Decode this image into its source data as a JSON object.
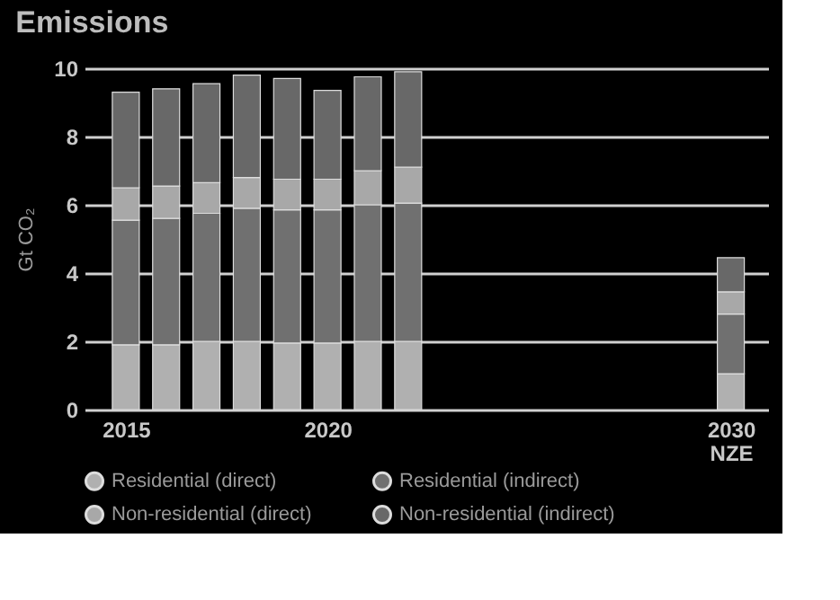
{
  "chart_data": {
    "type": "bar",
    "stacked": true,
    "title": "Emissions",
    "ylabel": "Gt CO₂",
    "x": [
      2015,
      2016,
      2017,
      2018,
      2019,
      2020,
      2021,
      2022,
      2030
    ],
    "xlim": [
      2014.2,
      2030.7
    ],
    "xticks": [
      2015,
      2020,
      {
        "value": 2030,
        "label": "2030 NZE"
      }
    ],
    "ylim": [
      0,
      10
    ],
    "yticks": [
      0,
      2,
      4,
      6,
      8,
      10
    ],
    "grid": "y",
    "legend": "bottom",
    "series": [
      {
        "name": "Residential (direct)",
        "color": "#b0b0b0",
        "values": [
          1.9,
          1.9,
          2.0,
          2.0,
          1.95,
          1.95,
          2.0,
          2.0,
          1.05
        ]
      },
      {
        "name": "Residential (indirect)",
        "color": "#707070",
        "values": [
          3.65,
          3.7,
          3.75,
          3.9,
          3.9,
          3.9,
          4.0,
          4.05,
          1.75
        ]
      },
      {
        "name": "Non-residential (direct)",
        "color": "#a8a8a8",
        "values": [
          0.95,
          0.95,
          0.9,
          0.9,
          0.9,
          0.9,
          1.0,
          1.05,
          0.65
        ]
      },
      {
        "name": "Non-residential (indirect)",
        "color": "#686868",
        "values": [
          2.8,
          2.85,
          2.9,
          3.0,
          2.95,
          2.6,
          2.75,
          2.8,
          1.0
        ]
      }
    ]
  }
}
